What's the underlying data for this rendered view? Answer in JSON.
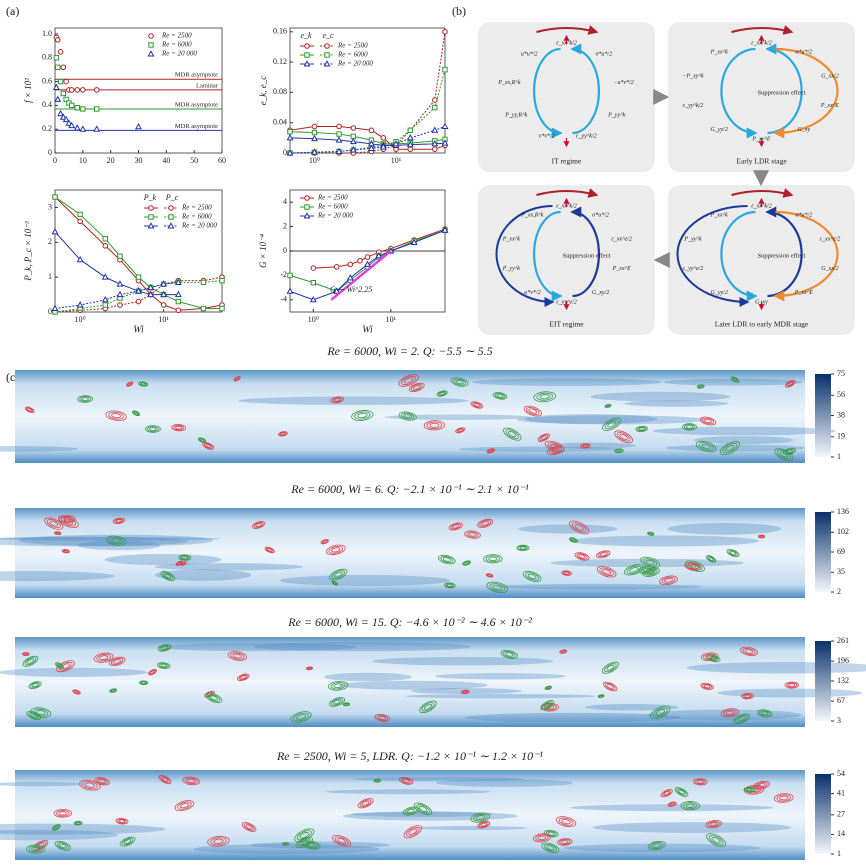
{
  "labels": {
    "a": "(a)",
    "b": "(b)",
    "c": "(c)"
  },
  "chart_data": [
    {
      "type": "line",
      "xlog": false,
      "xlim": [
        0,
        60
      ],
      "ylim": [
        0,
        1.05
      ],
      "xticks": [
        0,
        10,
        20,
        30,
        40,
        50,
        60
      ],
      "yticks": [
        0,
        0.2,
        0.4,
        0.6,
        0.8,
        {
          "value": 1,
          "label": "1.0"
        }
      ],
      "ylabel": "f × 10²",
      "legend": "upper right",
      "series": [
        {
          "name": "Re = 2500",
          "color": "#b22222",
          "marker": "circle",
          "lines": false,
          "x": [
            0.5,
            1,
            2,
            3,
            4,
            5,
            6,
            8,
            10,
            15
          ],
          "values": [
            0.97,
            0.95,
            0.85,
            0.72,
            0.6,
            0.53,
            0.53,
            0.53,
            0.53,
            0.53
          ]
        },
        {
          "name": "Re = 6000",
          "color": "#2e9a2e",
          "marker": "square",
          "lines": false,
          "x": [
            0.5,
            1,
            2,
            3,
            4,
            5,
            6,
            8,
            10,
            15
          ],
          "values": [
            0.8,
            0.72,
            0.6,
            0.5,
            0.45,
            0.42,
            0.4,
            0.38,
            0.37,
            0.37
          ]
        },
        {
          "name": "Re = 20 000",
          "color": "#2233aa",
          "marker": "triangle",
          "lines": false,
          "x": [
            0.5,
            1,
            2,
            3,
            4,
            5,
            6,
            8,
            10,
            15,
            30
          ],
          "values": [
            0.55,
            0.45,
            0.33,
            0.3,
            0.28,
            0.25,
            0.23,
            0.21,
            0.2,
            0.2,
            0.22
          ]
        }
      ],
      "ref_lines": [
        {
          "label": "MDR asymptote",
          "color": "#b22222",
          "value": 0.62
        },
        {
          "label": "Laminar",
          "color": "#b22222",
          "value": 0.53
        },
        {
          "label": "MDR asymptote",
          "color": "#2e9a2e",
          "value": 0.37
        },
        {
          "label": "MDR asymptote",
          "color": "#2233aa",
          "value": 0.19
        }
      ]
    },
    {
      "type": "line",
      "xlog": true,
      "xlim": [
        0.5,
        40
      ],
      "ylim": [
        0,
        0.165
      ],
      "xticks": [
        {
          "value": 1,
          "label": "10⁰"
        },
        {
          "value": 10,
          "label": "10¹"
        }
      ],
      "yticks": [
        0,
        0.04,
        0.08,
        0.12,
        0.16
      ],
      "ylabel": "e_k, e_c",
      "legend": "upper left",
      "legend_headers": [
        "e_k",
        "e_c"
      ],
      "series": [
        {
          "name": "Re = 2500",
          "color": "#b22222",
          "marker": "circle",
          "dash": false,
          "x": [
            0.5,
            1,
            2,
            3,
            5,
            7,
            10,
            15,
            30,
            40
          ],
          "values": [
            0.03,
            0.035,
            0.035,
            0.033,
            0.03,
            0.02,
            0.005,
            0.005,
            0.005,
            0.01
          ]
        },
        {
          "color": "#b22222",
          "marker": "circle",
          "dash": true,
          "x": [
            0.5,
            1,
            2,
            3,
            5,
            7,
            10,
            15,
            30,
            40
          ],
          "values": [
            0,
            0,
            0,
            0,
            0.002,
            0.005,
            0.01,
            0.03,
            0.07,
            0.16
          ]
        },
        {
          "name": "Re = 6000",
          "color": "#2e9a2e",
          "marker": "square",
          "dash": false,
          "x": [
            0.5,
            1,
            2,
            3,
            5,
            7,
            10,
            15,
            30,
            40
          ],
          "values": [
            0.028,
            0.027,
            0.025,
            0.022,
            0.017,
            0.012,
            0.012,
            0.013,
            0.016,
            0.018
          ]
        },
        {
          "color": "#2e9a2e",
          "marker": "square",
          "dash": true,
          "x": [
            0.5,
            1,
            2,
            3,
            5,
            7,
            10,
            15,
            30,
            40
          ],
          "values": [
            0,
            0.001,
            0.002,
            0.004,
            0.008,
            0.01,
            0.015,
            0.03,
            0.06,
            0.11
          ]
        },
        {
          "name": "Re = 20 000",
          "color": "#2233aa",
          "marker": "triangle",
          "dash": false,
          "x": [
            0.5,
            1,
            2,
            3,
            5,
            7,
            10,
            15,
            30,
            40
          ],
          "values": [
            0.02,
            0.019,
            0.017,
            0.015,
            0.012,
            0.01,
            0.01,
            0.011,
            0.012,
            0.013
          ]
        },
        {
          "color": "#2233aa",
          "marker": "triangle",
          "dash": true,
          "x": [
            0.5,
            1,
            2,
            3,
            5,
            7,
            10,
            15,
            30,
            40
          ],
          "values": [
            0,
            0.001,
            0.002,
            0.004,
            0.006,
            0.008,
            0.012,
            0.02,
            0.03,
            0.035
          ]
        }
      ]
    },
    {
      "type": "line",
      "xlog": true,
      "xlim": [
        0.5,
        50
      ],
      "ylim": [
        0,
        3.5
      ],
      "xticks": [
        {
          "value": 1,
          "label": "10⁰"
        },
        {
          "value": 10,
          "label": "10¹"
        }
      ],
      "yticks": [
        0,
        1,
        2,
        3
      ],
      "xlabel": "Wi",
      "ylabel": "P_k, P_c × 10⁻³",
      "legend": "upper right",
      "legend_headers": [
        "P_k",
        "P_c"
      ],
      "series": [
        {
          "name": "Re = 2500",
          "color": "#b22222",
          "marker": "circle",
          "dash": false,
          "x": [
            0.5,
            1,
            2,
            3,
            5,
            7,
            10,
            15,
            30,
            50
          ],
          "values": [
            3.3,
            2.6,
            1.9,
            1.5,
            0.9,
            0.5,
            0.2,
            0.05,
            0.1,
            0.2
          ]
        },
        {
          "color": "#b22222",
          "marker": "circle",
          "dash": true,
          "x": [
            0.5,
            1,
            2,
            3,
            5,
            7,
            10,
            15,
            30,
            50
          ],
          "values": [
            0,
            0.05,
            0.1,
            0.2,
            0.3,
            0.5,
            0.8,
            0.9,
            0.9,
            1
          ]
        },
        {
          "name": "Re = 6000",
          "color": "#2e9a2e",
          "marker": "square",
          "dash": false,
          "x": [
            0.5,
            1,
            2,
            3,
            5,
            7,
            10,
            15,
            30,
            50
          ],
          "values": [
            3.3,
            2.8,
            2.1,
            1.6,
            1,
            0.7,
            0.5,
            0.3,
            0.1,
            0.1
          ]
        },
        {
          "color": "#2e9a2e",
          "marker": "square",
          "dash": true,
          "x": [
            0.5,
            1,
            2,
            3,
            5,
            7,
            10,
            15,
            30,
            50
          ],
          "values": [
            0,
            0.1,
            0.2,
            0.4,
            0.6,
            0.7,
            0.8,
            0.85,
            0.85,
            0.9
          ]
        },
        {
          "name": "Re = 20 000",
          "color": "#2233aa",
          "marker": "triangle",
          "dash": false,
          "x": [
            0.5,
            1,
            2,
            3,
            5,
            7,
            10,
            15
          ],
          "values": [
            2.3,
            1.5,
            1,
            0.8,
            0.6,
            0.5,
            0.5,
            0.5
          ]
        },
        {
          "color": "#2233aa",
          "marker": "triangle",
          "dash": true,
          "x": [
            0.5,
            1,
            2,
            3,
            5,
            7,
            10,
            15
          ],
          "values": [
            0.1,
            0.2,
            0.35,
            0.5,
            0.6,
            0.7,
            0.8,
            0.85
          ]
        }
      ]
    },
    {
      "type": "line",
      "xlog": true,
      "xlim": [
        0.5,
        50
      ],
      "ylim": [
        -5,
        5
      ],
      "xticks": [
        {
          "value": 1,
          "label": "10⁰"
        },
        {
          "value": 10,
          "label": "10¹"
        }
      ],
      "yticks": [
        -4,
        -2,
        0,
        2,
        4
      ],
      "xlabel": "Wi",
      "ylabel": "G × 10⁻⁴",
      "legend": "upper left",
      "zero_line": true,
      "annotation": "G ∼ Wi^2.25",
      "series": [
        {
          "name": "Re = 2500",
          "color": "#b22222",
          "marker": "circle",
          "dash": false,
          "x": [
            1,
            2,
            3,
            4,
            5,
            7,
            10,
            20,
            50
          ],
          "values": [
            -1.4,
            -1.3,
            -1.1,
            -0.8,
            -0.5,
            -0.1,
            0.2,
            0.9,
            1.8
          ]
        },
        {
          "name": "Re = 6000",
          "color": "#2e9a2e",
          "marker": "square",
          "dash": false,
          "x": [
            0.5,
            1,
            2,
            3,
            5,
            7,
            10,
            20,
            50
          ],
          "values": [
            -2,
            -2.6,
            -3.3,
            -2.4,
            -1.3,
            -0.5,
            0,
            0.8,
            1.7
          ]
        },
        {
          "name": "Re = 20 000",
          "color": "#2233aa",
          "marker": "triangle",
          "dash": false,
          "x": [
            0.5,
            1,
            2,
            3,
            5,
            7,
            10,
            20,
            50
          ],
          "values": [
            -3.3,
            -4,
            -3.3,
            -2.2,
            -1.1,
            -0.4,
            0,
            0.7,
            1.7
          ]
        },
        {
          "color": "#e040e0",
          "marker": "none",
          "dash": false,
          "width": 2.5,
          "x": [
            1.7,
            10
          ],
          "values": [
            -4,
            0
          ]
        }
      ]
    }
  ],
  "diagram": {
    "stages": [
      {
        "title": "IT regime",
        "labels": [
          "ε_xx^k/2",
          "σ*u*/2",
          "−u*v*/2",
          "P_yy^k",
          "ε_yy^k/2",
          "v*v*/2",
          "P_yy,R^k",
          "P_xx,R^k",
          "u*u*/2"
        ]
      },
      {
        "title": "Early LDR stage",
        "labels": [
          "ε_xx^k/2",
          "σ*u*/2",
          "G_xx/2",
          "P_xx^E",
          "G_xy",
          "P_xy^E",
          "G_yy/2",
          "ε_yy^k/2",
          "−P_xy^k",
          "P_xx^k"
        ],
        "note": "Suppression effect"
      },
      {
        "title": "EIT regime",
        "labels": [
          "ε_xx^k/2",
          "σ*u*/2",
          "ε_xx^e/2",
          "P_xx^E",
          "G_xy/2",
          "ε_yy^e/2",
          "u*v*/2",
          "P_yy^k",
          "P_xx^k",
          "P_xx,R^k"
        ],
        "note": "Suppression effect"
      },
      {
        "title": "Later LDR to early MDR stage",
        "labels": [
          "ε_xx^k/2",
          "σ*u*/2",
          "ε_xx^e/2",
          "G_xx/2",
          "P_xx^E",
          "G_xy",
          "G_yy/2",
          "ε_yy^e/2",
          "P_yy^k",
          "P_xx^k"
        ],
        "note": "Suppression effect"
      }
    ]
  },
  "fields": {
    "panels": [
      {
        "title": "Re = 6000, Wi = 2. Q: −5.5 ∼ 5.5",
        "colorbar": [
          75,
          56,
          38,
          19,
          1
        ]
      },
      {
        "title": "Re = 6000, Wi = 6. Q: −2.1 × 10⁻¹ ∼ 2.1 × 10⁻¹",
        "colorbar": [
          136,
          102,
          69,
          35,
          2
        ]
      },
      {
        "title": "Re = 6000, Wi = 15. Q: −4.6 × 10⁻² ∼ 4.6 × 10⁻²",
        "colorbar": [
          261,
          196,
          132,
          67,
          3
        ]
      },
      {
        "title": "Re = 2500, Wi = 5, LDR. Q: −1.2 × 10⁻¹ ∼ 1.2 × 10⁻¹",
        "colorbar": [
          54,
          41,
          27,
          14,
          1
        ]
      }
    ]
  }
}
